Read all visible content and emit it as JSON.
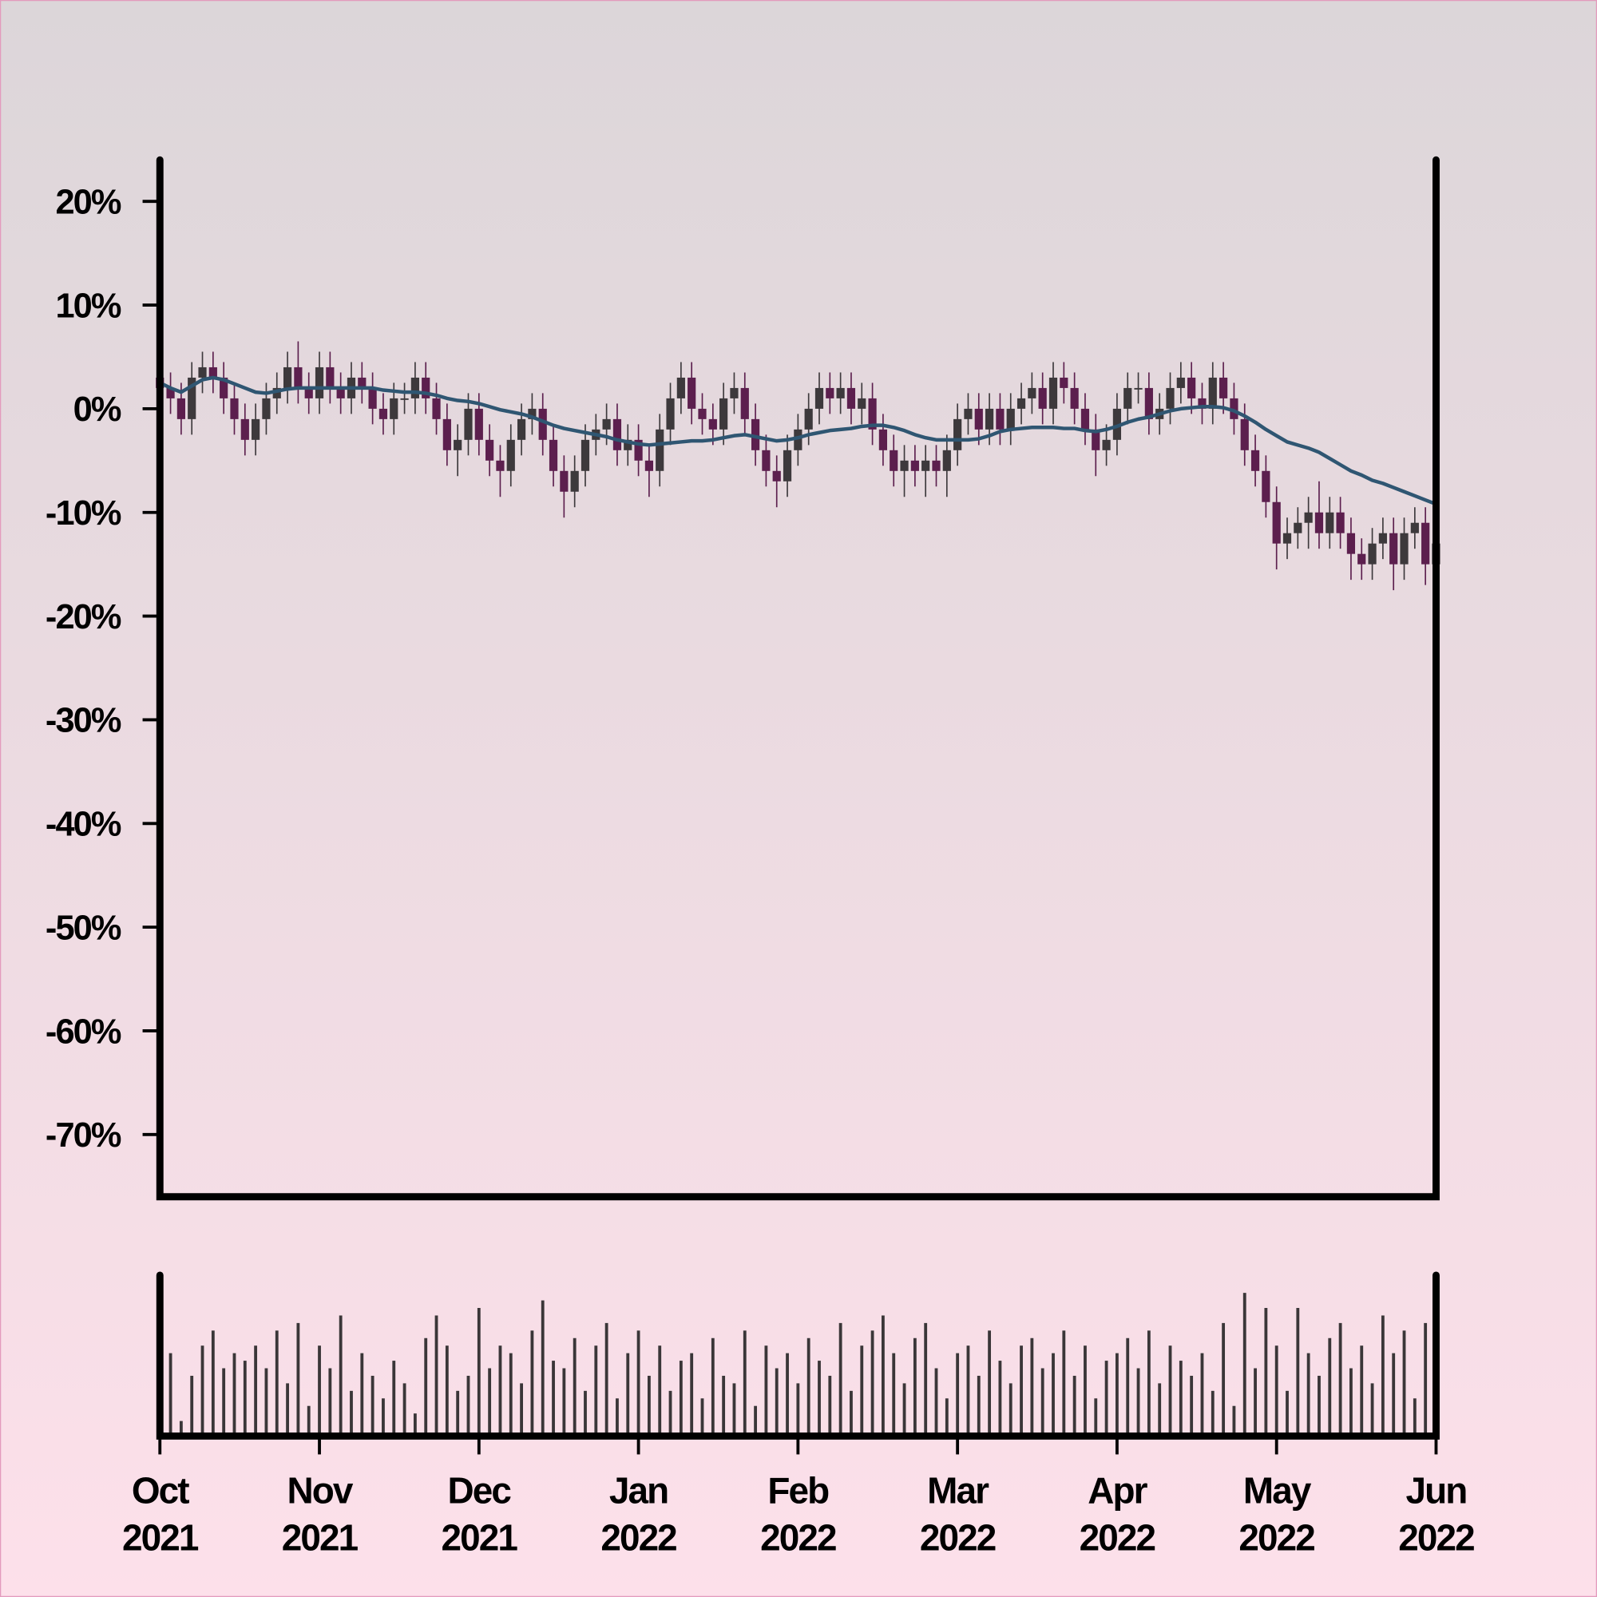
{
  "chart_data": {
    "type": "candlestick",
    "ylim": [
      -76,
      24
    ],
    "yticks": [
      {
        "value": -70,
        "label": "-70%"
      },
      {
        "value": -60,
        "label": "-60%"
      },
      {
        "value": -50,
        "label": "-50%"
      },
      {
        "value": -40,
        "label": "-40%"
      },
      {
        "value": -30,
        "label": "-30%"
      },
      {
        "value": -20,
        "label": "-20%"
      },
      {
        "value": -10,
        "label": "-10%"
      },
      {
        "value": 0,
        "label": "0%"
      },
      {
        "value": 10,
        "label": "10%"
      },
      {
        "value": 20,
        "label": "20%"
      }
    ],
    "xtick_labels": [
      [
        "Oct",
        "2021"
      ],
      [
        "Nov",
        "2021"
      ],
      [
        "Dec",
        "2021"
      ],
      [
        "Jan",
        "2022"
      ],
      [
        "Feb",
        "2022"
      ],
      [
        "Mar",
        "2022"
      ],
      [
        "Apr",
        "2022"
      ],
      [
        "May",
        "2022"
      ],
      [
        "Jun",
        "2022"
      ]
    ],
    "up_color": "#3d393c",
    "down_color": "#5c1f4e",
    "ma_color": "#2f5672",
    "volume_color": "#3a3638",
    "open": [
      3,
      2,
      1,
      -1,
      3,
      4,
      3,
      1,
      -1,
      -3,
      -1,
      1,
      2,
      4,
      2,
      1,
      4,
      2,
      1,
      3,
      2,
      0,
      -1,
      1,
      1,
      3,
      1,
      -1,
      -4,
      -3,
      0,
      -3,
      -5,
      -6,
      -3,
      -1,
      0,
      -3,
      -6,
      -8,
      -6,
      -3,
      -2,
      -1,
      -4,
      -3,
      -5,
      -6,
      -2,
      1,
      3,
      0,
      -1,
      -2,
      1,
      2,
      -1,
      -4,
      -6,
      -7,
      -4,
      -2,
      0,
      2,
      1,
      2,
      0,
      1,
      -2,
      -4,
      -6,
      -5,
      -6,
      -5,
      -6,
      -4,
      -1,
      0,
      -2,
      0,
      -2,
      0,
      1,
      2,
      0,
      3,
      2,
      0,
      -2,
      -4,
      -3,
      0,
      2,
      2,
      -1,
      0,
      2,
      3,
      1,
      0,
      3,
      1,
      -1,
      -4,
      -6,
      -9,
      -13,
      -12,
      -11,
      -10,
      -12,
      -10,
      -12,
      -14,
      -15,
      -13,
      -12,
      -15,
      -12,
      -11,
      -15
    ],
    "high": [
      4.5,
      3.5,
      2.5,
      4.5,
      5.5,
      5.5,
      4.5,
      2.5,
      0.5,
      0.5,
      2.5,
      3.5,
      5.5,
      6.5,
      3.5,
      5.5,
      5.5,
      3.5,
      4.5,
      4.5,
      3.5,
      1.5,
      2.5,
      2.5,
      4.5,
      4.5,
      2.5,
      0.5,
      -1.5,
      1.5,
      1.5,
      -1.5,
      -3.5,
      -1.5,
      0.5,
      1.5,
      1.5,
      -1.5,
      -4.5,
      -4.5,
      -1.5,
      -0.5,
      0.5,
      0.5,
      -1.5,
      -1.5,
      -3.5,
      -0.5,
      2.5,
      4.5,
      4.5,
      1.5,
      0.5,
      2.5,
      3.5,
      3.5,
      0.5,
      -2.5,
      -4.5,
      -2.5,
      -0.5,
      1.5,
      3.5,
      3.5,
      3.5,
      3.5,
      2.5,
      2.5,
      -0.5,
      -2.5,
      -3.5,
      -3.5,
      -3.5,
      -3.5,
      -2.5,
      0.5,
      1.5,
      1.5,
      1.5,
      1.5,
      1.5,
      2.5,
      3.5,
      3.5,
      4.5,
      4.5,
      3.5,
      1.5,
      -0.5,
      -1.5,
      1.5,
      3.5,
      3.5,
      3.5,
      1.5,
      3.5,
      4.5,
      4.5,
      2.5,
      4.5,
      4.5,
      2.5,
      0.5,
      -2.5,
      -4.5,
      -7.5,
      -10.5,
      -9.5,
      -8.5,
      -7,
      -8.5,
      -8.5,
      -10.5,
      -12.5,
      -11.5,
      -10.5,
      -10.5,
      -10.5,
      -9.5,
      -9.5,
      -11.5
    ],
    "low": [
      0.5,
      -0.5,
      -2.5,
      -2.5,
      1.5,
      1.5,
      -0.5,
      -2.5,
      -4.5,
      -4.5,
      -2.5,
      -0.5,
      0.5,
      0.5,
      -0.5,
      -0.5,
      0.5,
      -0.5,
      -0.5,
      0.5,
      -1.5,
      -2.5,
      -2.5,
      -0.5,
      -0.5,
      -0.5,
      -2.5,
      -5.5,
      -6.5,
      -4.5,
      -4.5,
      -6.5,
      -8.5,
      -7.5,
      -4.5,
      -2.5,
      -4.5,
      -7.5,
      -10.5,
      -9.5,
      -7.5,
      -4.5,
      -3.5,
      -5.5,
      -5.5,
      -6.5,
      -8.5,
      -7.5,
      -3.5,
      -0.5,
      -1.5,
      -2.5,
      -3.5,
      -3.5,
      -0.5,
      -2.5,
      -5.5,
      -7.5,
      -9.5,
      -8.5,
      -5.5,
      -3.5,
      -1.5,
      -0.5,
      -0.5,
      -1.5,
      -1.5,
      -3.5,
      -5.5,
      -7.5,
      -8.5,
      -7.5,
      -8.5,
      -7.5,
      -8.5,
      -5.5,
      -2.5,
      -3.5,
      -3.5,
      -3.5,
      -3.5,
      -1.5,
      -0.5,
      -1.5,
      -1.5,
      0.5,
      -1.5,
      -3.5,
      -6.5,
      -5.5,
      -4.5,
      -1.5,
      0.5,
      -2.5,
      -2.5,
      -1.5,
      0.5,
      -0.5,
      -1.5,
      -1.5,
      -0.5,
      -2.5,
      -5.5,
      -7.5,
      -10.5,
      -15.5,
      -14.5,
      -13.5,
      -13.5,
      -13.5,
      -13.5,
      -13.5,
      -16.5,
      -16.5,
      -16.5,
      -14.5,
      -17.5,
      -16.5,
      -13.5,
      -17,
      -16.5
    ],
    "close": [
      2,
      1,
      -1,
      3,
      4,
      3,
      1,
      -1,
      -3,
      -1,
      1,
      2,
      4,
      2,
      1,
      4,
      2,
      1,
      3,
      2,
      0,
      -1,
      1,
      1,
      3,
      1,
      -1,
      -4,
      -3,
      0,
      -3,
      -5,
      -6,
      -3,
      -1,
      0,
      -3,
      -6,
      -8,
      -6,
      -3,
      -2,
      -1,
      -4,
      -3,
      -5,
      -6,
      -2,
      1,
      3,
      0,
      -1,
      -2,
      1,
      2,
      -1,
      -4,
      -6,
      -7,
      -4,
      -2,
      0,
      2,
      1,
      2,
      0,
      1,
      -2,
      -4,
      -6,
      -5,
      -6,
      -5,
      -6,
      -4,
      -1,
      0,
      -2,
      0,
      -2,
      0,
      1,
      2,
      0,
      3,
      2,
      0,
      -2,
      -4,
      -3,
      0,
      2,
      2,
      -1,
      0,
      2,
      3,
      1,
      0,
      3,
      1,
      -1,
      -4,
      -6,
      -9,
      -13,
      -12,
      -11,
      -10,
      -12,
      -10,
      -12,
      -14,
      -15,
      -13,
      -12,
      -15,
      -12,
      -11,
      -15,
      -13
    ],
    "moving_average": [
      2.5,
      2,
      1.6,
      2.2,
      2.8,
      3,
      2.8,
      2.4,
      2,
      1.6,
      1.5,
      1.7,
      1.9,
      2,
      2,
      2,
      2,
      2,
      2,
      2,
      2,
      1.8,
      1.7,
      1.6,
      1.6,
      1.5,
      1.3,
      1,
      0.8,
      0.7,
      0.5,
      0.2,
      -0.1,
      -0.3,
      -0.5,
      -0.8,
      -1.2,
      -1.6,
      -1.9,
      -2.1,
      -2.3,
      -2.5,
      -2.7,
      -3,
      -3.2,
      -3.4,
      -3.5,
      -3.4,
      -3.3,
      -3.2,
      -3.1,
      -3.1,
      -3,
      -2.8,
      -2.6,
      -2.5,
      -2.7,
      -2.9,
      -3.1,
      -3,
      -2.8,
      -2.5,
      -2.3,
      -2.1,
      -2,
      -1.9,
      -1.7,
      -1.6,
      -1.6,
      -1.8,
      -2.1,
      -2.5,
      -2.8,
      -3,
      -3,
      -3,
      -3,
      -2.9,
      -2.6,
      -2.2,
      -2,
      -1.9,
      -1.8,
      -1.8,
      -1.8,
      -1.9,
      -1.9,
      -2.1,
      -2.2,
      -2,
      -1.7,
      -1.3,
      -1,
      -0.8,
      -0.5,
      -0.2,
      0,
      0.1,
      0.2,
      0.2,
      0.1,
      -0.2,
      -0.7,
      -1.3,
      -2,
      -2.6,
      -3.2,
      -3.5,
      -3.8,
      -4.2,
      -4.8,
      -5.4,
      -6,
      -6.4,
      -6.9,
      -7.2,
      -7.6,
      -8,
      -8.4,
      -8.8,
      -9.2
    ],
    "volume_lim": [
      0,
      100
    ],
    "volume": [
      20,
      55,
      10,
      40,
      60,
      70,
      45,
      55,
      50,
      60,
      45,
      70,
      35,
      75,
      20,
      60,
      45,
      80,
      30,
      55,
      40,
      25,
      50,
      35,
      15,
      65,
      80,
      60,
      30,
      40,
      85,
      45,
      60,
      55,
      35,
      70,
      90,
      50,
      45,
      65,
      30,
      60,
      75,
      25,
      55,
      70,
      40,
      60,
      30,
      50,
      55,
      25,
      65,
      40,
      35,
      70,
      20,
      60,
      45,
      55,
      35,
      65,
      50,
      40,
      75,
      30,
      60,
      70,
      80,
      55,
      35,
      65,
      75,
      45,
      25,
      55,
      60,
      40,
      70,
      50,
      35,
      60,
      65,
      45,
      55,
      70,
      40,
      60,
      25,
      50,
      55,
      65,
      45,
      70,
      35,
      60,
      50,
      40,
      55,
      30,
      75,
      20,
      95,
      45,
      85,
      60,
      30,
      85,
      55,
      40,
      65,
      75,
      45,
      60,
      35,
      80,
      55,
      70,
      25,
      75,
      60
    ]
  }
}
